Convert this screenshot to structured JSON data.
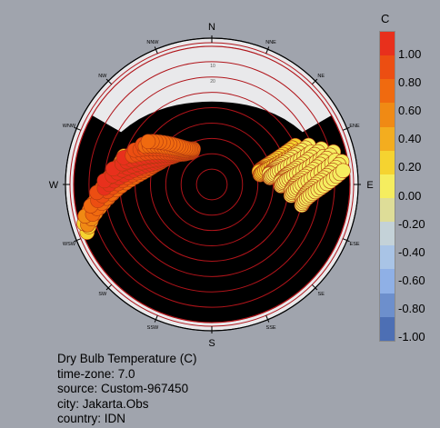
{
  "chart_data": {
    "type": "scatter",
    "title": "Dry Bulb Temperature (C)",
    "unit": "C",
    "legend_ticks": [
      "1.00",
      "0.80",
      "0.60",
      "0.40",
      "0.20",
      "0.00",
      "-0.20",
      "-0.40",
      "-0.60",
      "-0.80",
      "-1.00"
    ],
    "legend_colors": [
      "#e8301c",
      "#ec4e12",
      "#f06a0f",
      "#f08a14",
      "#f3ad1f",
      "#f5d330",
      "#f5ed5f",
      "#dedd98",
      "#c4d2d8",
      "#a9c4e6",
      "#8fb0e6",
      "#6d8fcc",
      "#4d6fb4"
    ],
    "compass": [
      "N",
      "NNE",
      "NE",
      "ENE",
      "E",
      "ESE",
      "SE",
      "SSE",
      "S",
      "SSW",
      "SW",
      "WSW",
      "W",
      "WNW",
      "NW",
      "NNW"
    ],
    "altitude_labels": [
      "10",
      "20"
    ],
    "sun_paths": [
      {
        "az0": 249,
        "az1": 286,
        "alt0": 3,
        "alt1": 30,
        "value": 0.1
      },
      {
        "az0": 252,
        "az1": 290,
        "alt0": 5,
        "alt1": 45,
        "value": 0.5
      },
      {
        "az0": 256,
        "az1": 295,
        "alt0": 10,
        "alt1": 52,
        "value": 0.6
      },
      {
        "az0": 262,
        "az1": 300,
        "alt0": 15,
        "alt1": 55,
        "value": 0.9
      },
      {
        "az0": 268,
        "az1": 305,
        "alt0": 20,
        "alt1": 57,
        "value": 1.0
      },
      {
        "az0": 275,
        "az1": 312,
        "alt0": 25,
        "alt1": 60,
        "value": 0.95
      },
      {
        "az0": 283,
        "az1": 318,
        "alt0": 30,
        "alt1": 62,
        "value": 1.0
      },
      {
        "az0": 290,
        "az1": 323,
        "alt0": 35,
        "alt1": 64,
        "value": 0.9
      },
      {
        "az0": 296,
        "az1": 328,
        "alt0": 38,
        "alt1": 65,
        "value": 0.8
      },
      {
        "az0": 300,
        "az1": 330,
        "alt0": 40,
        "alt1": 64,
        "value": 0.6
      },
      {
        "az0": 65,
        "az1": 75,
        "alt0": 30,
        "alt1": 58,
        "value": 0.1
      },
      {
        "az0": 68,
        "az1": 80,
        "alt0": 22,
        "alt1": 52,
        "value": 0.05
      },
      {
        "az0": 72,
        "az1": 88,
        "alt0": 15,
        "alt1": 45,
        "value": 0.0
      },
      {
        "az0": 75,
        "az1": 95,
        "alt0": 8,
        "alt1": 38,
        "value": 0.0
      },
      {
        "az0": 80,
        "az1": 100,
        "alt0": 4,
        "alt1": 30,
        "value": 0.0
      }
    ]
  },
  "info": {
    "title": "Dry Bulb Temperature (C)",
    "timezone": "time-zone: 7.0",
    "source": "source: Custom-967450",
    "city": "city: Jakarta.Obs",
    "country": "country: IDN"
  }
}
